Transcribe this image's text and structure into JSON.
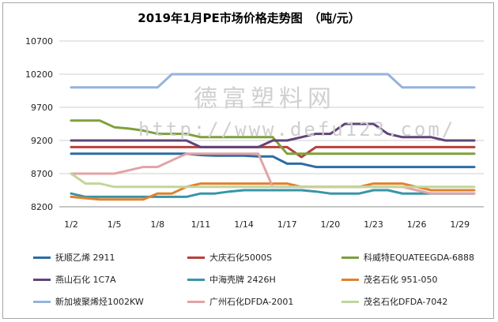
{
  "chart_data": {
    "type": "line",
    "title": "2019年1月PE市场价格走势图　（吨/元）",
    "x": [
      "1/2",
      "1/3",
      "1/4",
      "1/5",
      "1/6",
      "1/7",
      "1/8",
      "1/9",
      "1/10",
      "1/11",
      "1/12",
      "1/13",
      "1/14",
      "1/15",
      "1/16",
      "1/17",
      "1/18",
      "1/19",
      "1/20",
      "1/21",
      "1/22",
      "1/23",
      "1/24",
      "1/25",
      "1/26",
      "1/27",
      "1/28",
      "1/29",
      "1/30"
    ],
    "x_tick_labels": [
      "1/2",
      "1/5",
      "1/8",
      "1/11",
      "1/14",
      "1/17",
      "1/20",
      "1/23",
      "1/26",
      "1/29"
    ],
    "y_ticks": [
      8200,
      8700,
      9200,
      9700,
      10200,
      10700
    ],
    "ylim": [
      8200,
      10700
    ],
    "grid": true,
    "legend_position": "bottom",
    "series": [
      {
        "name": "抚顺乙烯 2911",
        "color": "#2e6ca4",
        "values": [
          9000,
          9000,
          9000,
          9000,
          9000,
          9000,
          9000,
          9000,
          9000,
          8980,
          8970,
          8970,
          8970,
          8960,
          8960,
          8850,
          8850,
          8800,
          8800,
          8800,
          8800,
          8800,
          8800,
          8800,
          8800,
          8800,
          8800,
          8800,
          8800
        ]
      },
      {
        "name": "大庆石化5000S",
        "color": "#b5423b",
        "values": [
          9100,
          9100,
          9100,
          9100,
          9100,
          9100,
          9100,
          9100,
          9100,
          9100,
          9100,
          9100,
          9100,
          9100,
          9100,
          9100,
          8950,
          9100,
          9100,
          9100,
          9100,
          9100,
          9100,
          9100,
          9100,
          9100,
          9100,
          9100,
          9100
        ]
      },
      {
        "name": "科威特EQUATEEGDA-6888",
        "color": "#7fa03d",
        "values": [
          9500,
          9500,
          9500,
          9400,
          9380,
          9350,
          9300,
          9300,
          9300,
          9250,
          9250,
          9250,
          9250,
          9250,
          9250,
          9000,
          9000,
          9000,
          9000,
          9000,
          9000,
          9000,
          9000,
          9000,
          9000,
          9000,
          9000,
          9000,
          9000
        ]
      },
      {
        "name": "燕山石化 1C7A",
        "color": "#604478",
        "values": [
          9200,
          9200,
          9200,
          9200,
          9200,
          9200,
          9200,
          9200,
          9200,
          9100,
          9100,
          9100,
          9100,
          9100,
          9200,
          9200,
          9250,
          9300,
          9300,
          9450,
          9450,
          9450,
          9300,
          9250,
          9250,
          9250,
          9200,
          9200,
          9200
        ]
      },
      {
        "name": "中海壳牌 2426H",
        "color": "#3895a8",
        "values": [
          8400,
          8350,
          8350,
          8350,
          8350,
          8350,
          8350,
          8350,
          8350,
          8400,
          8400,
          8430,
          8450,
          8450,
          8450,
          8450,
          8450,
          8430,
          8400,
          8400,
          8400,
          8450,
          8450,
          8400,
          8400,
          8400,
          8400,
          8400,
          8400
        ]
      },
      {
        "name": "茂名石化 951-050",
        "color": "#e0812b",
        "values": [
          8350,
          8330,
          8310,
          8310,
          8310,
          8310,
          8400,
          8400,
          8500,
          8550,
          8550,
          8550,
          8550,
          8550,
          8550,
          8550,
          8500,
          8500,
          8500,
          8500,
          8500,
          8550,
          8550,
          8550,
          8500,
          8450,
          8450,
          8450,
          8450
        ]
      },
      {
        "name": "新加坡聚烯烃1002KW",
        "color": "#94b3dd",
        "values": [
          10000,
          10000,
          10000,
          10000,
          10000,
          10000,
          10000,
          10200,
          10200,
          10200,
          10200,
          10200,
          10200,
          10200,
          10200,
          10200,
          10200,
          10200,
          10200,
          10200,
          10200,
          10200,
          10200,
          10000,
          10000,
          10000,
          10000,
          10000,
          10000
        ]
      },
      {
        "name": "广州石化DFDA-2001",
        "color": "#e2a3a5",
        "values": [
          8700,
          8700,
          8700,
          8700,
          8750,
          8800,
          8800,
          8900,
          9000,
          9000,
          9000,
          9000,
          9000,
          9000,
          8500,
          8500,
          8500,
          8500,
          8500,
          8500,
          8500,
          8500,
          8500,
          8500,
          8450,
          8400,
          8400,
          8400,
          8400
        ]
      },
      {
        "name": "茂名石化DFDA-7042",
        "color": "#c1d69c",
        "values": [
          8700,
          8550,
          8550,
          8500,
          8500,
          8500,
          8500,
          8500,
          8500,
          8500,
          8500,
          8500,
          8500,
          8500,
          8500,
          8500,
          8500,
          8500,
          8500,
          8500,
          8500,
          8500,
          8500,
          8500,
          8500,
          8500,
          8500,
          8500,
          8500
        ]
      }
    ]
  },
  "watermark": {
    "text_cn": "德富塑料网",
    "text_url": "http://www.defu123.com/"
  }
}
